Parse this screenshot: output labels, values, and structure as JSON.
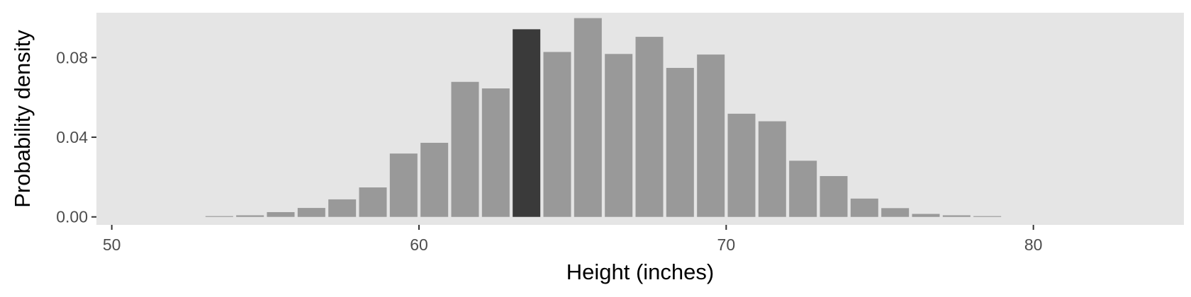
{
  "chart_data": {
    "type": "bar",
    "title": "",
    "xlabel": "Height (inches)",
    "ylabel": "Probability density",
    "xlim": [
      49.5,
      84.9
    ],
    "ylim": [
      -0.004,
      0.1025
    ],
    "x_ticks": [
      50,
      60,
      70,
      80
    ],
    "x_tick_labels": [
      "50",
      "60",
      "70",
      "80"
    ],
    "y_ticks": [
      0.0,
      0.04,
      0.08
    ],
    "y_tick_labels": [
      "0.00",
      "0.04",
      "0.08"
    ],
    "grid": false,
    "legend": "none",
    "bar_width": 0.9,
    "x": [
      53.5,
      54.5,
      55.5,
      56.5,
      57.5,
      58.5,
      59.5,
      60.5,
      61.5,
      62.5,
      63.5,
      64.5,
      65.5,
      66.5,
      67.5,
      68.5,
      69.5,
      70.5,
      71.5,
      72.5,
      73.5,
      74.5,
      75.5,
      76.5,
      77.5,
      78.5
    ],
    "values": [
      0.0004,
      0.0008,
      0.0024,
      0.0045,
      0.0088,
      0.0148,
      0.0318,
      0.0372,
      0.0678,
      0.0645,
      0.0942,
      0.0828,
      0.0998,
      0.0818,
      0.0904,
      0.0748,
      0.0815,
      0.0518,
      0.048,
      0.0282,
      0.0205,
      0.0092,
      0.0044,
      0.0015,
      0.0008,
      0.0004
    ],
    "highlight_index": 10,
    "colors": {
      "panel": "#e5e5e5",
      "bar": "#999999",
      "bar_highlight": "#3a3a3a",
      "tick": "#333333"
    }
  }
}
